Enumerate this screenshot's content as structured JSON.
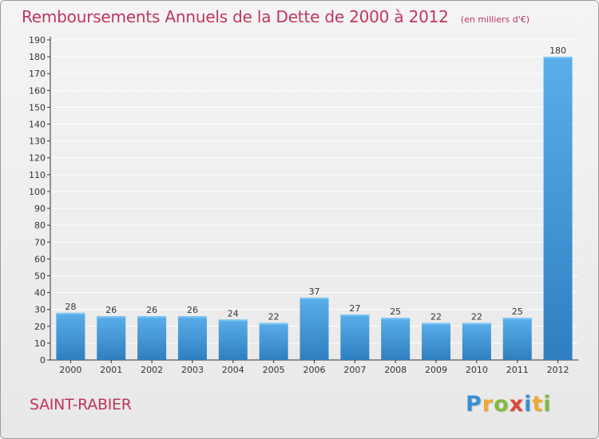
{
  "title": "Remboursements Annuels de la Dette de 2000 à 2012",
  "subtitle": "(en milliers d'€)",
  "commune": "SAINT-RABIER",
  "brand": {
    "text": "Proxiti",
    "letters": [
      {
        "ch": "P",
        "color": "#3a8fd1"
      },
      {
        "ch": "r",
        "color": "#f0a830"
      },
      {
        "ch": "o",
        "color": "#86b840"
      },
      {
        "ch": "x",
        "color": "#e0463a"
      },
      {
        "ch": "i",
        "color": "#3a8fd1"
      },
      {
        "ch": "t",
        "color": "#f0a830"
      },
      {
        "ch": "i",
        "color": "#86b840"
      }
    ]
  },
  "colors": {
    "bar_top": "#5aaeea",
    "bar_bottom": "#2f7fc0",
    "title": "#c0365c",
    "axis": "#333333",
    "grid": "#ffffff"
  },
  "chart_data": {
    "type": "bar",
    "categories": [
      "2000",
      "2001",
      "2002",
      "2003",
      "2004",
      "2005",
      "2006",
      "2007",
      "2008",
      "2009",
      "2010",
      "2011",
      "2012"
    ],
    "values": [
      28,
      26,
      26,
      26,
      24,
      22,
      37,
      27,
      25,
      22,
      22,
      25,
      180
    ],
    "ylim": [
      0,
      190
    ],
    "yticks": [
      0,
      10,
      20,
      30,
      40,
      50,
      60,
      70,
      80,
      90,
      100,
      110,
      120,
      130,
      140,
      150,
      160,
      170,
      180,
      190
    ],
    "grid": true,
    "data_labels": true
  }
}
